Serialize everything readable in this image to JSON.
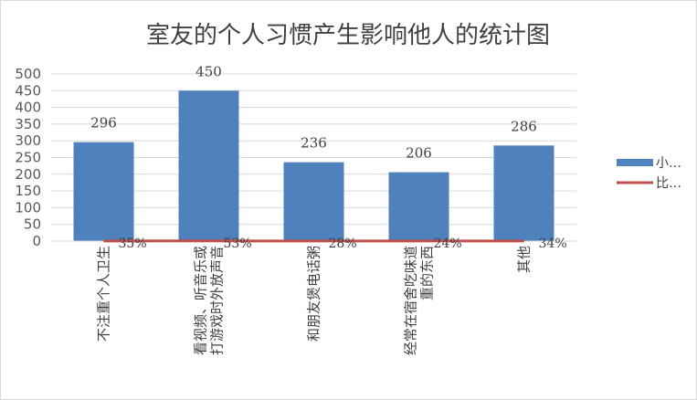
{
  "chart_data": {
    "type": "bar",
    "title": "室友的个人习惯产生影响他人的统计图",
    "categories": [
      [
        "不注重个人卫生"
      ],
      [
        "看视频、听音乐或",
        "打游戏时外放声音"
      ],
      [
        "和朋友煲电话粥"
      ],
      [
        "经常在宿舍吃味道",
        "重的东西"
      ],
      [
        "其他"
      ]
    ],
    "series": [
      {
        "name": "小…",
        "kind": "bar",
        "values": [
          296,
          450,
          236,
          206,
          286
        ],
        "color": "#4f81bd"
      },
      {
        "name": "比…",
        "kind": "line",
        "values": [
          35,
          53,
          28,
          24,
          34
        ],
        "value_labels": [
          "35%",
          "53%",
          "28%",
          "24%",
          "34%"
        ],
        "color": "#c0504d"
      }
    ],
    "ylim": [
      0,
      500
    ],
    "yticks": [
      0,
      50,
      100,
      150,
      200,
      250,
      300,
      350,
      400,
      450,
      500
    ],
    "grid": true,
    "legend": "right"
  }
}
